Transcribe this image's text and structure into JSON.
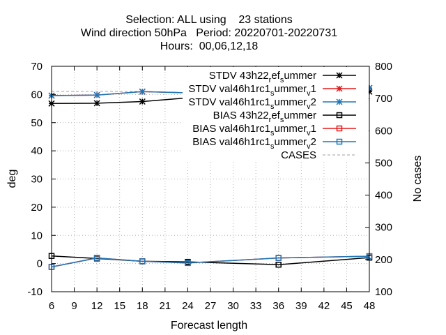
{
  "chart_data": {
    "type": "line",
    "title_lines": [
      "Selection: ALL using    23 stations",
      "Wind direction 50hPa   Period: 20220701-20220731",
      "Hours:  00,06,12,18"
    ],
    "xlabel": "Forecast length",
    "ylabel": "deg",
    "y2label": "No cases",
    "xlim": [
      6,
      48
    ],
    "ylim": [
      -10,
      70
    ],
    "y2lim": [
      100,
      800
    ],
    "x_ticks": [
      6,
      9,
      12,
      15,
      18,
      21,
      24,
      27,
      30,
      33,
      36,
      39,
      42,
      45,
      48
    ],
    "y_ticks": [
      -10,
      0,
      10,
      20,
      30,
      40,
      50,
      60,
      70
    ],
    "y2_ticks": [
      100,
      200,
      300,
      400,
      500,
      600,
      700,
      800
    ],
    "grid": true,
    "legend_position": "top-right",
    "colors": {
      "black": "#000000",
      "red": "#e41a1c",
      "blue": "#1f77b4",
      "gray": "#a0a0a0",
      "grid": "#b0b0b0"
    },
    "series": [
      {
        "name": "STDV 43h22_ref_summer",
        "label_main": "STDV 43h22",
        "label_sub1": "r",
        "label_mid": "ef",
        "label_sub2": "s",
        "label_end": "ummer",
        "color": "#000000",
        "marker": "star",
        "axis": "y",
        "x": [
          6,
          12,
          18,
          24,
          36,
          48
        ],
        "y": [
          56.8,
          56.9,
          57.5,
          58.8,
          58.3,
          61.0
        ]
      },
      {
        "name": "STDV val46h1rc1_summer_v1",
        "label_main": "STDV val46h1rc1",
        "label_sub1": "s",
        "label_mid": "ummer",
        "label_sub2": "v",
        "label_end": "1",
        "color": "#e41a1c",
        "marker": "star",
        "axis": "y",
        "x": [
          6,
          12,
          18,
          24,
          36,
          48
        ],
        "y": [
          59.6,
          59.8,
          61.0,
          60.6,
          61.0,
          62.3
        ]
      },
      {
        "name": "STDV val46h1rc1_summer_v2",
        "label_main": "STDV val46h1rc1",
        "label_sub1": "s",
        "label_mid": "ummer",
        "label_sub2": "v",
        "label_end": "2",
        "color": "#1f77b4",
        "marker": "star",
        "axis": "y",
        "x": [
          6,
          12,
          18,
          24,
          36,
          48
        ],
        "y": [
          59.6,
          59.8,
          61.0,
          60.6,
          61.0,
          62.3
        ]
      },
      {
        "name": "BIAS 43h22_ref_summer",
        "label_main": "BIAS 43h22",
        "label_sub1": "r",
        "label_mid": "ef",
        "label_sub2": "s",
        "label_end": "ummer",
        "color": "#000000",
        "marker": "square",
        "axis": "y",
        "x": [
          6,
          12,
          18,
          24,
          36,
          48
        ],
        "y": [
          2.7,
          1.8,
          0.8,
          0.6,
          -0.4,
          2.1
        ]
      },
      {
        "name": "BIAS val46h1rc1_summer_v1",
        "label_main": "BIAS val46h1rc1",
        "label_sub1": "s",
        "label_mid": "ummer",
        "label_sub2": "v",
        "label_end": "1",
        "color": "#e41a1c",
        "marker": "square",
        "axis": "y",
        "x": [
          6,
          12,
          18,
          24,
          36,
          48
        ],
        "y": [
          -1.2,
          2.0,
          0.8,
          0.2,
          2.0,
          2.6
        ]
      },
      {
        "name": "BIAS val46h1rc1_summer_v2",
        "label_main": "BIAS val46h1rc1",
        "label_sub1": "s",
        "label_mid": "ummer",
        "label_sub2": "v",
        "label_end": "2",
        "color": "#1f77b4",
        "marker": "square",
        "axis": "y",
        "x": [
          6,
          12,
          18,
          24,
          36,
          48
        ],
        "y": [
          -1.2,
          2.0,
          0.8,
          0.2,
          2.0,
          2.6
        ]
      },
      {
        "name": "CASES",
        "label_main": "CASES",
        "color": "#a0a0a0",
        "marker": "none",
        "dashed": true,
        "axis": "y2",
        "x": [
          6,
          12,
          18,
          24,
          36,
          48
        ],
        "y": [
          722,
          722,
          722,
          718,
          694,
          693
        ]
      }
    ]
  }
}
